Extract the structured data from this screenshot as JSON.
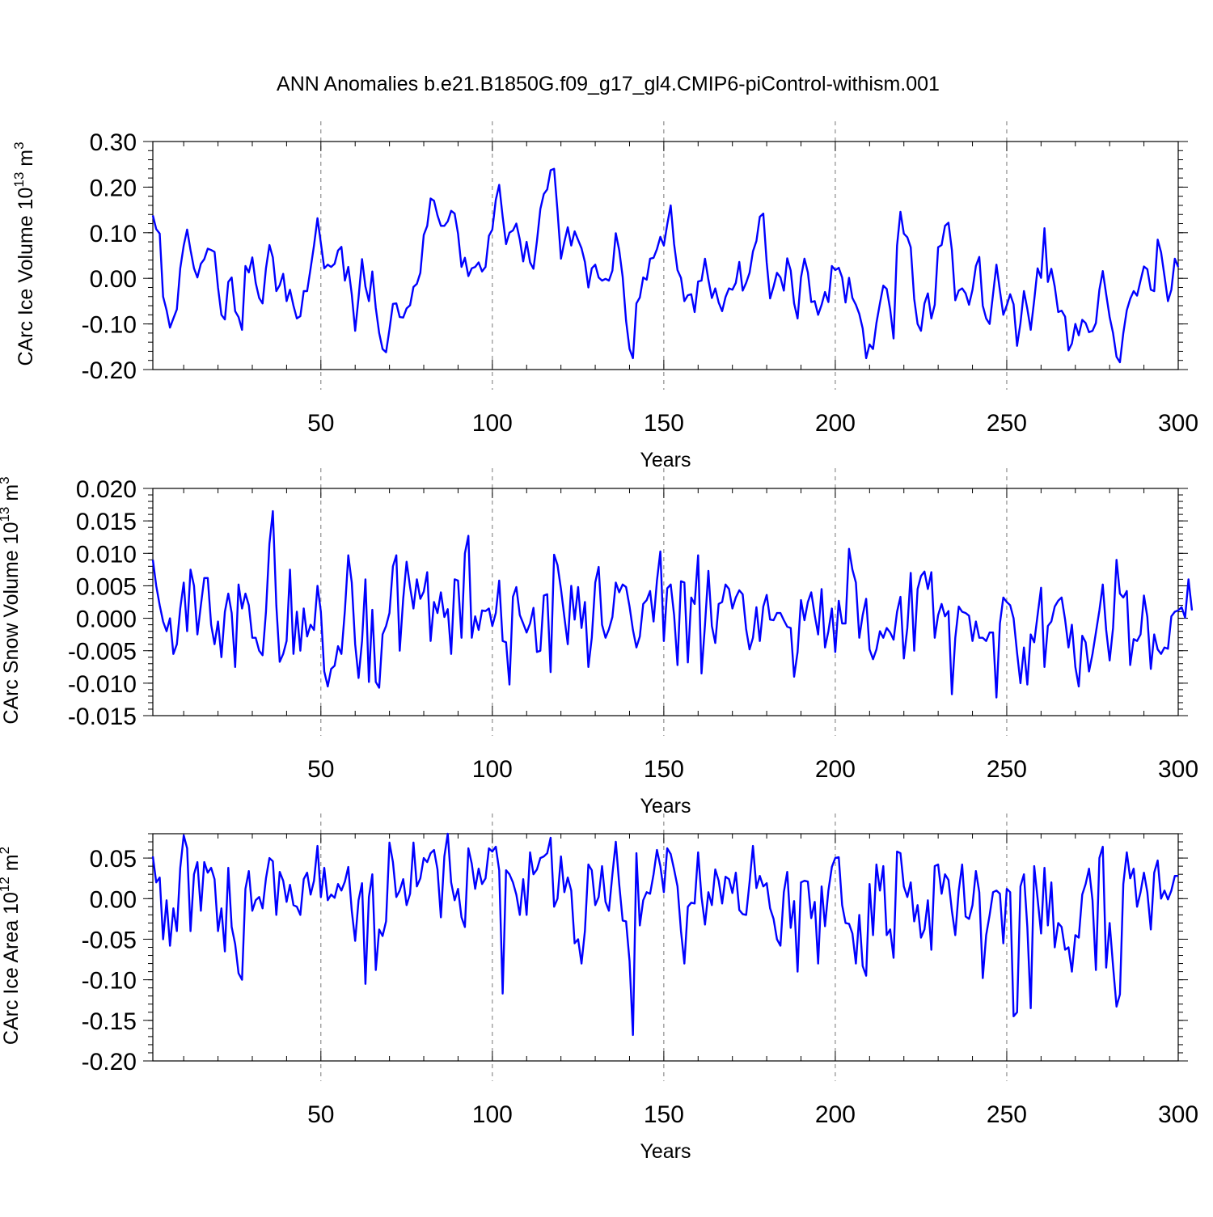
{
  "title": "ANN Anomalies b.e21.B1850G.f09_g17_gl4.CMIP6-piControl-withism.001",
  "line_color": "#0000ff",
  "chart_data": [
    {
      "type": "line",
      "ylabel": "CArc Ice Volume 10",
      "ylabel_exp": "13",
      "ylabel_unit": "m",
      "ylabel_unit_exp": "3",
      "xlabel": "Years",
      "xlim": [
        1,
        300
      ],
      "ylim": [
        -0.2,
        0.3
      ],
      "x_ticks": [
        50,
        100,
        150,
        200,
        250,
        300
      ],
      "x_tick_labels": [
        "50",
        "100",
        "150",
        "200",
        "250",
        "300"
      ],
      "y_ticks": [
        -0.2,
        -0.1,
        0.0,
        0.1,
        0.2,
        0.3
      ],
      "y_tick_labels": [
        "-0.20",
        "-0.10",
        "0.00",
        "0.10",
        "0.20",
        "0.30"
      ],
      "y_minor_step": 0.02,
      "dashed_x_gridlines": [
        50,
        100,
        150,
        200,
        250
      ],
      "x_start": 1,
      "values": [
        0.138,
        0.108,
        0.098,
        -0.04,
        -0.07,
        -0.108,
        -0.088,
        -0.068,
        0.022,
        0.072,
        0.107,
        0.062,
        0.022,
        0.002,
        0.032,
        0.042,
        0.065,
        0.062,
        0.058,
        -0.02,
        -0.08,
        -0.09,
        -0.008,
        0.002,
        -0.072,
        -0.085,
        -0.113,
        0.027,
        0.013,
        0.046,
        -0.01,
        -0.043,
        -0.055,
        0.022,
        0.073,
        0.046,
        -0.028,
        -0.015,
        0.01,
        -0.05,
        -0.025,
        -0.06,
        -0.088,
        -0.083,
        -0.028,
        -0.028,
        0.022,
        0.072,
        0.132,
        0.077,
        0.022,
        0.03,
        0.025,
        0.032,
        0.061,
        0.069,
        -0.005,
        0.025,
        -0.035,
        -0.115,
        -0.042,
        0.042,
        -0.018,
        -0.05,
        0.015,
        -0.065,
        -0.12,
        -0.155,
        -0.162,
        -0.112,
        -0.056,
        -0.055,
        -0.085,
        -0.086,
        -0.066,
        -0.059,
        -0.019,
        -0.012,
        0.012,
        0.095,
        0.115,
        0.175,
        0.17,
        0.138,
        0.115,
        0.115,
        0.125,
        0.148,
        0.142,
        0.098,
        0.025,
        0.045,
        0.005,
        0.022,
        0.025,
        0.035,
        0.015,
        0.025,
        0.093,
        0.107,
        0.172,
        0.205,
        0.135,
        0.075,
        0.1,
        0.105,
        0.12,
        0.085,
        0.037,
        0.08,
        0.035,
        0.021,
        0.082,
        0.152,
        0.185,
        0.195,
        0.237,
        0.24,
        0.148,
        0.043,
        0.08,
        0.112,
        0.072,
        0.103,
        0.084,
        0.066,
        0.036,
        -0.02,
        0.022,
        0.03,
        0.002,
        -0.005,
        -0.001,
        -0.005,
        0.017,
        0.099,
        0.062,
        0.003,
        -0.093,
        -0.155,
        -0.175,
        -0.055,
        -0.042,
        0.002,
        -0.003,
        0.043,
        0.045,
        0.064,
        0.091,
        0.072,
        0.118,
        0.16,
        0.075,
        0.018,
        0.001,
        -0.05,
        -0.037,
        -0.035,
        -0.074,
        -0.007,
        -0.005,
        0.043,
        -0.003,
        -0.043,
        -0.022,
        -0.053,
        -0.072,
        -0.041,
        -0.022,
        -0.025,
        -0.01,
        0.036,
        -0.027,
        -0.01,
        0.012,
        0.059,
        0.082,
        0.135,
        0.142,
        0.035,
        -0.044,
        -0.018,
        0.012,
        0.002,
        -0.027,
        0.044,
        0.017,
        -0.055,
        -0.088,
        0.002,
        0.043,
        0.013,
        -0.052,
        -0.05,
        -0.08,
        -0.058,
        -0.03,
        -0.052,
        0.027,
        0.018,
        0.023,
        0.002,
        -0.053,
        0.001,
        -0.043,
        -0.058,
        -0.078,
        -0.11,
        -0.175,
        -0.145,
        -0.155,
        -0.098,
        -0.055,
        -0.016,
        -0.023,
        -0.068,
        -0.132,
        0.072,
        0.146,
        0.098,
        0.09,
        0.068,
        -0.045,
        -0.1,
        -0.115,
        -0.055,
        -0.033,
        -0.088,
        -0.058,
        0.068,
        0.073,
        0.115,
        0.122,
        0.062,
        -0.048,
        -0.027,
        -0.022,
        -0.033,
        -0.058,
        -0.025,
        0.027,
        0.047,
        -0.06,
        -0.088,
        -0.1,
        -0.035,
        0.03,
        -0.027,
        -0.08,
        -0.059,
        -0.035,
        -0.057,
        -0.148,
        -0.098,
        -0.028,
        -0.067,
        -0.113,
        -0.048,
        0.022,
        0.001,
        0.11,
        -0.008,
        0.021,
        -0.018,
        -0.074,
        -0.071,
        -0.084,
        -0.158,
        -0.143,
        -0.1,
        -0.125,
        -0.091,
        -0.098,
        -0.118,
        -0.115,
        -0.098,
        -0.025,
        0.016,
        -0.035,
        -0.085,
        -0.12,
        -0.172,
        -0.184,
        -0.12,
        -0.07,
        -0.045,
        -0.028,
        -0.038,
        -0.005,
        0.026,
        0.02,
        -0.025,
        -0.028,
        0.085,
        0.057,
        0.005,
        -0.05,
        -0.025,
        0.043,
        0.025
      ]
    },
    {
      "type": "line",
      "ylabel": "CArc Snow Volume 10",
      "ylabel_exp": "13",
      "ylabel_unit": "m",
      "ylabel_unit_exp": "3",
      "xlabel": "Years",
      "xlim": [
        1,
        300
      ],
      "ylim": [
        -0.015,
        0.02
      ],
      "x_ticks": [
        50,
        100,
        150,
        200,
        250,
        300
      ],
      "x_tick_labels": [
        "50",
        "100",
        "150",
        "200",
        "250",
        "300"
      ],
      "y_ticks": [
        -0.015,
        -0.01,
        -0.005,
        0.0,
        0.005,
        0.01,
        0.015,
        0.02
      ],
      "y_tick_labels": [
        "-0.015",
        "-0.010",
        "-0.005",
        "0.000",
        "0.005",
        "0.010",
        "0.015",
        "0.020"
      ],
      "y_minor_step": 0.001,
      "dashed_x_gridlines": [
        50,
        100,
        150,
        200,
        250
      ],
      "x_start": 1,
      "values": [
        0.009,
        0.005,
        0.002,
        -0.0005,
        -0.002,
        0.0,
        -0.0055,
        -0.004,
        0.0015,
        0.0055,
        -0.002,
        0.0075,
        0.005,
        -0.0025,
        0.002,
        0.0062,
        0.0062,
        -0.001,
        -0.004,
        -0.0005,
        -0.006,
        0.001,
        0.0038,
        0.0008,
        -0.0075,
        0.0052,
        0.0015,
        0.0038,
        0.002,
        -0.003,
        -0.003,
        -0.005,
        -0.0057,
        0.001,
        0.0115,
        0.0165,
        0.002,
        -0.0067,
        -0.0055,
        -0.0035,
        0.0075,
        -0.0055,
        0.001,
        -0.005,
        0.0015,
        -0.0028,
        -0.001,
        -0.0018,
        0.005,
        0.001,
        -0.0082,
        -0.0105,
        -0.0078,
        -0.0073,
        -0.0043,
        -0.0055,
        0.0012,
        0.0097,
        0.0055,
        -0.004,
        -0.0092,
        -0.0035,
        0.006,
        -0.0098,
        0.0013,
        -0.0098,
        -0.0107,
        -0.0025,
        -0.0012,
        0.0008,
        0.008,
        0.0097,
        -0.005,
        0.003,
        0.0087,
        0.0048,
        0.0015,
        0.006,
        0.003,
        0.0041,
        0.0071,
        -0.0035,
        0.0025,
        0.0008,
        0.004,
        0.0002,
        0.0014,
        -0.0055,
        0.006,
        0.0058,
        -0.003,
        0.01,
        0.0127,
        -0.003,
        0.0003,
        -0.0018,
        0.0012,
        0.0011,
        0.0015,
        -0.0012,
        0.0008,
        0.0058,
        -0.0035,
        -0.0037,
        -0.0102,
        0.0033,
        0.0048,
        0.0005,
        -0.0008,
        -0.0022,
        -0.0008,
        0.0016,
        -0.0052,
        -0.005,
        0.0035,
        0.0037,
        -0.0083,
        0.0098,
        0.0082,
        0.0045,
        0.0002,
        -0.004,
        0.005,
        -0.0002,
        0.0048,
        -0.0015,
        0.0025,
        -0.0075,
        -0.003,
        0.0055,
        0.0079,
        -0.001,
        -0.003,
        -0.0017,
        0.0002,
        0.0055,
        0.004,
        0.0052,
        0.0048,
        0.0018,
        -0.0018,
        -0.0045,
        -0.0028,
        0.0022,
        0.0028,
        0.0042,
        -0.0005,
        0.0058,
        0.0103,
        -0.0035,
        0.0046,
        0.0052,
        0.0005,
        -0.0072,
        0.0057,
        0.0055,
        -0.0068,
        0.0032,
        0.0022,
        0.0097,
        -0.0085,
        -0.001,
        0.0073,
        -0.0012,
        -0.0038,
        0.0022,
        0.0025,
        0.0052,
        0.0045,
        0.0015,
        0.0032,
        0.0043,
        0.0037,
        -0.0017,
        -0.0048,
        -0.003,
        0.0017,
        -0.0035,
        0.0018,
        0.0036,
        -0.0002,
        -0.0003,
        0.0008,
        0.0008,
        -0.0003,
        -0.0013,
        -0.0015,
        -0.009,
        -0.0052,
        0.0028,
        -0.0003,
        0.0025,
        0.004,
        0.0005,
        -0.0025,
        0.0045,
        -0.0045,
        -0.002,
        0.0015,
        -0.0052,
        0.0027,
        -0.0008,
        -0.0008,
        0.0107,
        0.0075,
        0.0055,
        -0.003,
        0.0005,
        0.003,
        -0.0048,
        -0.0063,
        -0.0048,
        -0.002,
        -0.003,
        -0.0015,
        -0.0022,
        -0.0033,
        0.001,
        0.0033,
        -0.0062,
        -0.0015,
        0.007,
        -0.005,
        0.0045,
        0.0065,
        0.0072,
        0.0045,
        0.0071,
        -0.003,
        0.0005,
        0.0022,
        0.0003,
        0.0011,
        -0.0117,
        -0.003,
        0.0018,
        0.001,
        0.0008,
        0.0004,
        -0.0035,
        -0.0005,
        -0.003,
        -0.003,
        -0.0035,
        -0.0022,
        -0.0022,
        -0.0122,
        -0.0008,
        0.0032,
        0.0025,
        0.002,
        0.0,
        -0.0053,
        -0.01,
        -0.0045,
        -0.0102,
        -0.0025,
        -0.0037,
        0.0005,
        0.0047,
        -0.0075,
        -0.0012,
        -0.0005,
        0.0018,
        0.0027,
        0.0032,
        -0.0002,
        -0.0045,
        -0.001,
        -0.0075,
        -0.0105,
        -0.0027,
        -0.0037,
        -0.0082,
        -0.0055,
        -0.0022,
        0.0012,
        0.0052,
        -0.0018,
        -0.0065,
        -0.0015,
        0.009,
        0.0038,
        0.0032,
        0.0042,
        -0.0072,
        -0.0032,
        -0.0035,
        -0.0025,
        0.0035,
        0.0002,
        -0.0078,
        -0.0025,
        -0.0048,
        -0.0055,
        -0.0045,
        -0.0047,
        0.0003,
        0.001,
        0.0012,
        0.0017,
        0.0001,
        0.006,
        0.0012
      ]
    },
    {
      "type": "line",
      "ylabel": "CArc Ice Area 10",
      "ylabel_exp": "12",
      "ylabel_unit": "m",
      "ylabel_unit_exp": "2",
      "xlabel": "Years",
      "xlim": [
        1,
        300
      ],
      "ylim": [
        -0.2,
        0.08
      ],
      "x_ticks": [
        50,
        100,
        150,
        200,
        250,
        300
      ],
      "x_tick_labels": [
        "50",
        "100",
        "150",
        "200",
        "250",
        "300"
      ],
      "y_ticks": [
        -0.2,
        -0.15,
        -0.1,
        -0.05,
        0.0,
        0.05
      ],
      "y_tick_labels": [
        "-0.20",
        "-0.15",
        "-0.10",
        "-0.05",
        "0.00",
        "0.05"
      ],
      "y_minor_step": 0.01,
      "dashed_x_gridlines": [
        50,
        100,
        150,
        200,
        250
      ],
      "x_start": 1,
      "values": [
        0.052,
        0.02,
        0.026,
        -0.05,
        -0.002,
        -0.058,
        -0.012,
        -0.04,
        0.038,
        0.078,
        0.062,
        -0.04,
        0.03,
        0.045,
        -0.015,
        0.045,
        0.032,
        0.038,
        0.024,
        -0.04,
        -0.012,
        -0.065,
        0.038,
        -0.035,
        -0.056,
        -0.092,
        -0.1,
        0.012,
        0.034,
        -0.015,
        -0.002,
        0.002,
        -0.012,
        0.025,
        0.05,
        0.046,
        -0.02,
        0.033,
        0.022,
        -0.004,
        0.017,
        -0.008,
        -0.01,
        -0.02,
        0.024,
        0.032,
        0.005,
        0.022,
        0.065,
        0.002,
        0.038,
        -0.002,
        0.005,
        0.001,
        0.018,
        0.01,
        0.021,
        0.039,
        -0.015,
        -0.052,
        -0.002,
        0.019,
        -0.105,
        0.002,
        0.03,
        -0.088,
        -0.038,
        -0.046,
        -0.028,
        0.069,
        0.045,
        0.002,
        0.01,
        0.024,
        -0.008,
        0.006,
        0.069,
        0.015,
        0.025,
        0.05,
        0.045,
        0.056,
        0.06,
        0.036,
        -0.023,
        0.052,
        0.08,
        0.02,
        -0.002,
        0.012,
        -0.023,
        -0.035,
        0.062,
        0.043,
        0.012,
        0.037,
        0.018,
        0.025,
        0.062,
        0.058,
        0.064,
        0.035,
        -0.117,
        0.035,
        0.03,
        0.02,
        0.005,
        -0.02,
        0.024,
        -0.02,
        0.057,
        0.03,
        0.036,
        0.05,
        0.052,
        0.056,
        0.075,
        -0.01,
        0.0,
        0.052,
        0.008,
        0.026,
        0.01,
        -0.055,
        -0.05,
        -0.08,
        -0.04,
        0.042,
        0.035,
        -0.008,
        0.002,
        0.04,
        -0.004,
        -0.015,
        0.03,
        0.07,
        0.018,
        -0.027,
        -0.028,
        -0.077,
        -0.168,
        0.056,
        -0.033,
        -0.002,
        0.008,
        0.006,
        0.03,
        0.06,
        0.04,
        0.008,
        0.062,
        0.055,
        0.036,
        0.015,
        -0.04,
        -0.08,
        -0.01,
        -0.005,
        -0.006,
        0.057,
        0.002,
        -0.032,
        0.008,
        -0.008,
        0.036,
        0.022,
        -0.006,
        0.027,
        0.024,
        0.007,
        0.032,
        -0.014,
        -0.019,
        -0.02,
        0.02,
        0.065,
        0.013,
        0.028,
        0.015,
        0.019,
        -0.012,
        -0.025,
        -0.05,
        -0.058,
        0.008,
        0.033,
        -0.036,
        -0.003,
        -0.09,
        0.02,
        0.022,
        0.021,
        -0.024,
        -0.004,
        -0.08,
        0.015,
        -0.034,
        0.01,
        0.039,
        0.05,
        0.051,
        -0.008,
        -0.03,
        -0.031,
        -0.043,
        -0.08,
        -0.02,
        -0.083,
        -0.095,
        0.018,
        -0.045,
        0.042,
        0.01,
        0.04,
        -0.045,
        -0.038,
        -0.073,
        0.058,
        0.056,
        0.015,
        0.002,
        0.02,
        -0.028,
        -0.008,
        -0.048,
        -0.038,
        -0.002,
        -0.063,
        0.04,
        0.042,
        0.006,
        0.03,
        0.023,
        -0.015,
        -0.045,
        0.01,
        0.042,
        -0.022,
        -0.025,
        -0.008,
        0.034,
        0.008,
        -0.098,
        -0.045,
        -0.02,
        0.008,
        0.01,
        0.006,
        -0.055,
        0.012,
        0.008,
        -0.145,
        -0.14,
        0.015,
        0.03,
        -0.035,
        -0.135,
        0.04,
        0.0,
        -0.043,
        0.038,
        -0.033,
        0.02,
        -0.06,
        -0.03,
        -0.035,
        -0.063,
        -0.06,
        -0.09,
        -0.045,
        -0.048,
        0.005,
        0.018,
        0.037,
        -0.002,
        -0.088,
        0.05,
        0.064,
        -0.085,
        -0.03,
        -0.083,
        -0.133,
        -0.118,
        0.018,
        0.057,
        0.025,
        0.037,
        -0.01,
        0.008,
        0.032,
        0.008,
        -0.038,
        0.032,
        0.047,
        0.0,
        0.01,
        -0.001,
        0.01,
        0.028,
        0.028
      ]
    }
  ]
}
